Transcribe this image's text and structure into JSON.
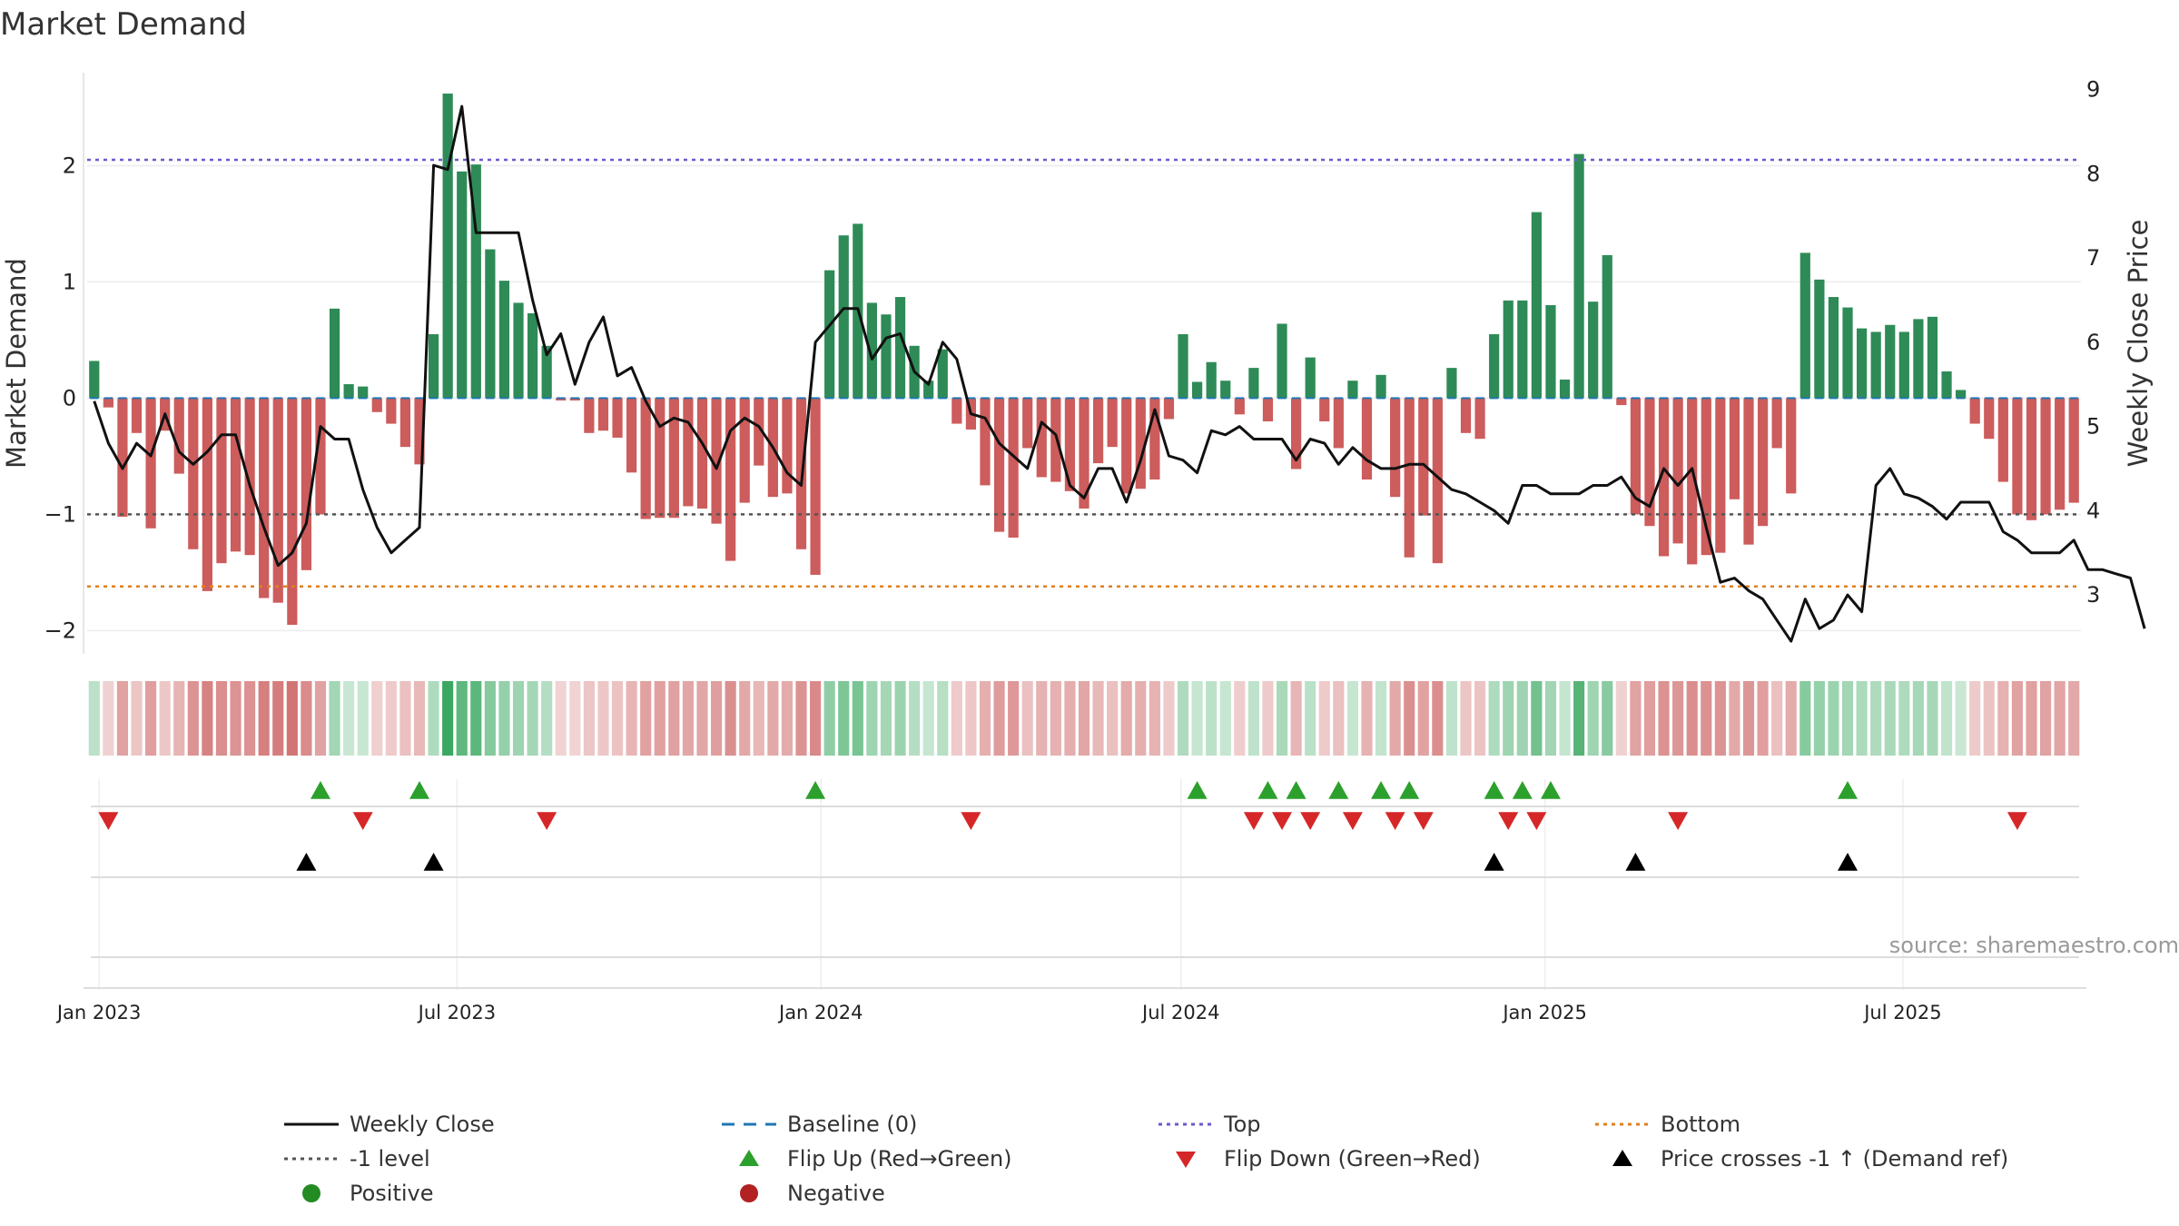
{
  "title": "Market Demand",
  "source": "source: sharemaestro.com",
  "colors": {
    "positive": "#2e8b57",
    "negative": "#cd5c5c",
    "price_line": "#111111",
    "baseline": "#1f77b4",
    "top": "#6a5acd",
    "minus1": "#555555",
    "bottom": "#e08020",
    "flip_up": "#2ca02c",
    "flip_down": "#d62728",
    "cross": "#000000",
    "legend_positive": "#228b22",
    "legend_negative": "#b22222"
  },
  "chart_data": {
    "type": "bar+line",
    "x_axis": {
      "start": "2022-12-26",
      "end": "2025-09-29",
      "tick_labels": [
        "Jan 2023",
        "Jul 2023",
        "Jan 2024",
        "Jul 2024",
        "Jan 2025",
        "Jul 2025"
      ],
      "tick_dates": [
        "2023-01-01",
        "2023-07-01",
        "2024-01-01",
        "2024-07-01",
        "2025-01-01",
        "2025-07-01"
      ]
    },
    "left_axis": {
      "label": "Market Demand",
      "ylim": [
        -2.2,
        2.8
      ],
      "ticks": [
        -2,
        -1,
        0,
        1,
        2
      ]
    },
    "right_axis": {
      "label": "Weekly Close Price",
      "ylim": [
        2.3,
        9.2
      ],
      "ticks": [
        3,
        4,
        5,
        6,
        7,
        8,
        9
      ]
    },
    "reference_lines": {
      "top": 2.05,
      "minus_one": -1.0,
      "bottom": -1.62,
      "baseline": 0
    },
    "series": [
      {
        "name": "Market Demand",
        "kind": "bar",
        "values": [
          0.32,
          -0.08,
          -1.02,
          -0.3,
          -1.12,
          -0.28,
          -0.65,
          -1.3,
          -1.66,
          -1.42,
          -1.32,
          -1.35,
          -1.72,
          -1.76,
          -1.95,
          -1.48,
          -1.0,
          0.77,
          0.12,
          0.1,
          -0.12,
          -0.22,
          -0.42,
          -0.57,
          0.55,
          2.62,
          1.95,
          2.01,
          1.28,
          1.01,
          0.82,
          0.73,
          0.45,
          -0.02,
          -0.02,
          -0.3,
          -0.28,
          -0.34,
          -0.64,
          -1.04,
          -1.03,
          -1.03,
          -0.93,
          -0.95,
          -1.08,
          -1.4,
          -0.9,
          -0.58,
          -0.85,
          -0.82,
          -1.3,
          -1.52,
          1.1,
          1.4,
          1.5,
          0.82,
          0.72,
          0.87,
          0.45,
          0.15,
          0.42,
          -0.22,
          -0.27,
          -0.75,
          -1.15,
          -1.2,
          -0.43,
          -0.68,
          -0.72,
          -0.8,
          -0.95,
          -0.56,
          -0.42,
          -0.82,
          -0.78,
          -0.7,
          -0.18,
          0.55,
          0.14,
          0.31,
          0.15,
          -0.14,
          0.26,
          -0.2,
          0.64,
          -0.61,
          0.35,
          -0.2,
          -0.43,
          0.15,
          -0.7,
          0.2,
          -0.85,
          -1.37,
          -1.01,
          -1.42,
          0.26,
          -0.3,
          -0.35,
          0.55,
          0.84,
          0.84,
          1.6,
          0.8,
          0.16,
          2.1,
          0.83,
          1.23,
          -0.06,
          -1.0,
          -1.1,
          -1.36,
          -1.25,
          -1.43,
          -1.35,
          -1.33,
          -0.87,
          -1.26,
          -1.1,
          -0.43,
          -0.82,
          1.25,
          1.02,
          0.87,
          0.78,
          0.6,
          0.57,
          0.63,
          0.57,
          0.68,
          0.7,
          0.23,
          0.07,
          -0.22,
          -0.35,
          -0.72,
          -1.0,
          -1.05,
          -1.0,
          -0.96,
          -0.9
        ]
      },
      {
        "name": "Weekly Close",
        "kind": "line",
        "axis": "right",
        "values": [
          5.3,
          4.8,
          4.5,
          4.8,
          4.65,
          5.15,
          4.7,
          4.55,
          4.7,
          4.9,
          4.9,
          4.3,
          3.8,
          3.35,
          3.5,
          3.85,
          5.0,
          4.85,
          4.85,
          4.25,
          3.8,
          3.5,
          3.65,
          3.8,
          8.1,
          8.05,
          8.8,
          7.3,
          7.3,
          7.3,
          7.3,
          6.5,
          5.85,
          6.1,
          5.5,
          6.0,
          6.3,
          5.6,
          5.7,
          5.3,
          5.0,
          5.1,
          5.05,
          4.8,
          4.5,
          4.95,
          5.1,
          5.0,
          4.75,
          4.45,
          4.3,
          6.0,
          6.2,
          6.4,
          6.4,
          5.8,
          6.05,
          6.1,
          5.65,
          5.5,
          6.0,
          5.8,
          5.15,
          5.1,
          4.8,
          4.65,
          4.5,
          5.05,
          4.9,
          4.3,
          4.15,
          4.5,
          4.5,
          4.1,
          4.6,
          5.2,
          4.65,
          4.6,
          4.45,
          4.95,
          4.9,
          5.0,
          4.85,
          4.85,
          4.85,
          4.6,
          4.85,
          4.8,
          4.55,
          4.75,
          4.6,
          4.5,
          4.5,
          4.55,
          4.55,
          4.4,
          4.25,
          4.2,
          4.1,
          4.0,
          3.85,
          4.3,
          4.3,
          4.2,
          4.2,
          4.2,
          4.3,
          4.3,
          4.4,
          4.15,
          4.05,
          4.5,
          4.3,
          4.5,
          3.8,
          3.15,
          3.2,
          3.05,
          2.95,
          2.7,
          2.45,
          2.95,
          2.6,
          2.7,
          3.0,
          2.8,
          4.3,
          4.5,
          4.2,
          4.15,
          4.05,
          3.9,
          4.1,
          4.1,
          4.1,
          3.75,
          3.65,
          3.5,
          3.5,
          3.5,
          3.65,
          3.3,
          3.3,
          3.25,
          3.2,
          2.6
        ]
      }
    ],
    "markers": {
      "flip_up_indices": [
        16,
        23,
        51,
        78,
        83,
        85,
        88,
        91,
        93,
        99,
        101,
        103,
        124
      ],
      "flip_down_indices": [
        1,
        19,
        32,
        62,
        82,
        84,
        86,
        89,
        92,
        94,
        100,
        102,
        112,
        136
      ],
      "price_cross_indices": [
        15,
        24,
        99,
        109,
        124
      ]
    }
  },
  "legend": {
    "items": [
      {
        "label": "Weekly Close",
        "symbol": "solid-line",
        "color": "#111111"
      },
      {
        "label": "Baseline (0)",
        "symbol": "dashed-line",
        "color": "#1f77b4"
      },
      {
        "label": "Top",
        "symbol": "dotted-line",
        "color": "#6a5acd"
      },
      {
        "label": "Bottom",
        "symbol": "dotted-line",
        "color": "#e08020"
      },
      {
        "label": "-1 level",
        "symbol": "dotted-line",
        "color": "#555555"
      },
      {
        "label": "Flip Up (Red→Green)",
        "symbol": "triangle-up",
        "color": "#2ca02c"
      },
      {
        "label": "Flip Down (Green→Red)",
        "symbol": "triangle-down",
        "color": "#d62728"
      },
      {
        "label": "Price crosses -1 ↑ (Demand ref)",
        "symbol": "triangle-up",
        "color": "#000000"
      },
      {
        "label": "Positive",
        "symbol": "circle",
        "color": "#228b22"
      },
      {
        "label": "Negative",
        "symbol": "circle",
        "color": "#b22222"
      }
    ]
  }
}
